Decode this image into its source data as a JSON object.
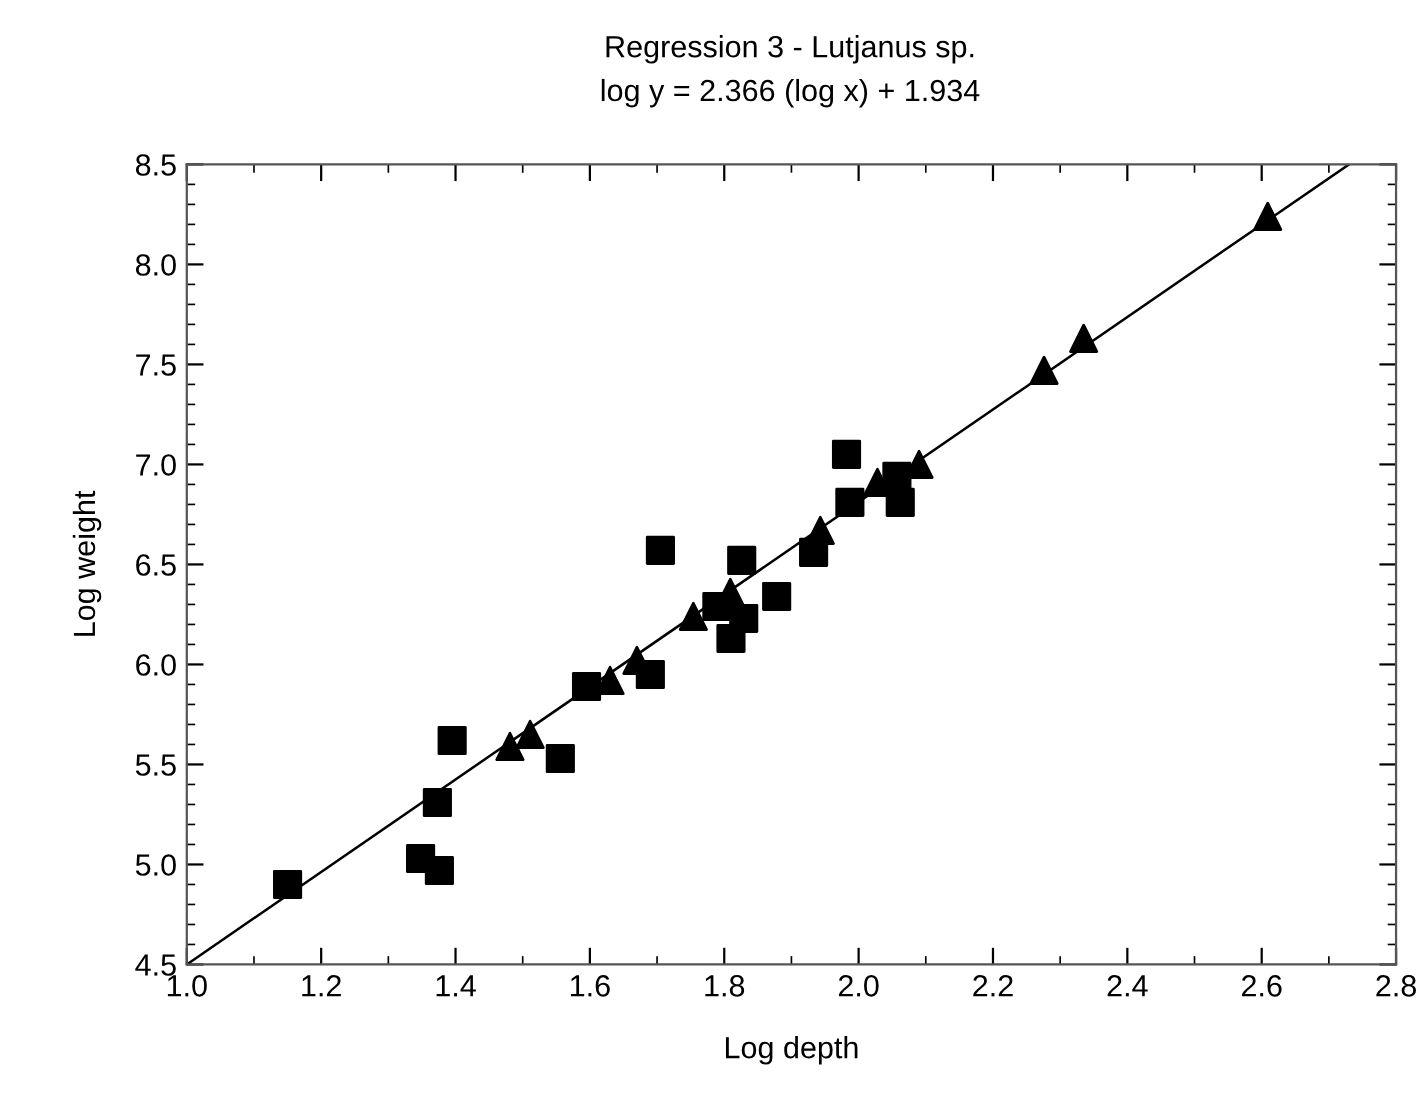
{
  "chart_data": {
    "type": "scatter",
    "title": "Regression 3 - Lutjanus sp.",
    "subtitle": "log y = 2.366 (log x) + 1.934",
    "xlabel": "Log depth",
    "ylabel": "Log weight",
    "xlim": [
      1.0,
      2.8
    ],
    "ylim": [
      4.5,
      8.5
    ],
    "xticks": [
      {
        "value": 1,
        "label": "1.0"
      },
      1.2,
      1.4,
      1.6,
      1.8,
      {
        "value": 2,
        "label": "2.0"
      },
      2.2,
      2.4,
      2.6,
      2.8
    ],
    "yticks": [
      4.5,
      {
        "value": 5,
        "label": "5.0"
      },
      5.5,
      {
        "value": 6,
        "label": "6.0"
      },
      6.5,
      {
        "value": 7,
        "label": "7.0"
      },
      7.5,
      {
        "value": 8,
        "label": "8.0"
      },
      8.5
    ],
    "grid": false,
    "legend": false,
    "series": [
      {
        "marker": "square",
        "color": "#000000",
        "x": [
          1.15,
          1.348,
          1.376,
          1.373,
          1.395,
          1.556,
          1.595,
          1.69,
          1.789,
          1.81,
          1.829,
          1.705,
          1.826,
          1.878,
          1.933,
          1.982,
          1.987,
          2.057,
          2.062
        ],
        "values": [
          4.9,
          5.03,
          4.97,
          5.31,
          5.62,
          5.53,
          5.89,
          5.95,
          6.29,
          6.13,
          6.23,
          6.57,
          6.52,
          6.34,
          6.56,
          7.05,
          6.81,
          6.94,
          6.81
        ]
      },
      {
        "marker": "triangle",
        "color": "#000000",
        "x": [
          1.481,
          1.511,
          1.63,
          1.67,
          1.754,
          1.809,
          1.943,
          2.028,
          2.09,
          2.276,
          2.335,
          2.609
        ],
        "values": [
          5.59,
          5.65,
          5.92,
          6.02,
          6.24,
          6.36,
          6.67,
          6.91,
          7.0,
          7.47,
          7.63,
          8.24
        ]
      },
      {
        "type": "line",
        "marker": "none",
        "line_style": "solid",
        "color": "#000000",
        "x": [
          1.0,
          2.73
        ],
        "values": [
          4.5,
          8.5
        ]
      }
    ]
  }
}
